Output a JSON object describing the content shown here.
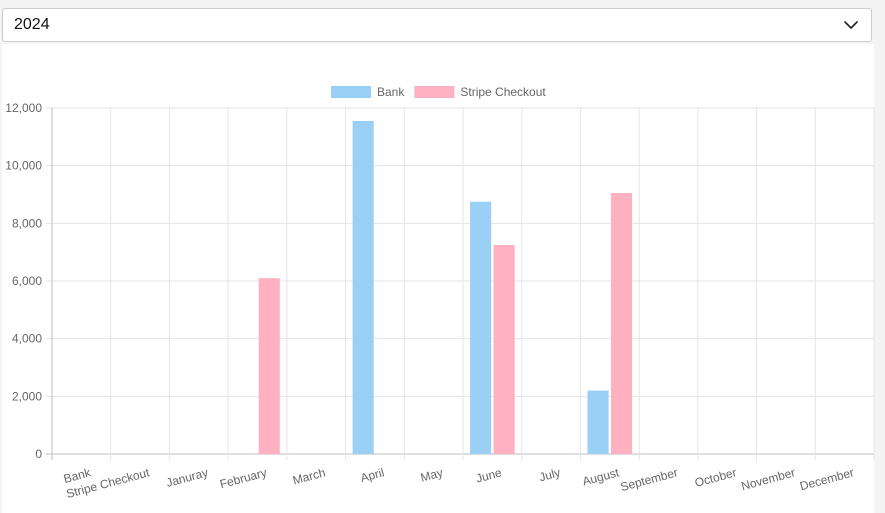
{
  "filter": {
    "selected_year": "2024",
    "chevron_icon": "chevron-down-icon"
  },
  "chart_data": {
    "type": "bar",
    "title": "",
    "xlabel": "",
    "ylabel": "",
    "categories": [
      "Bank",
      "Stripe Checkout",
      "Januray",
      "February",
      "March",
      "April",
      "May",
      "June",
      "July",
      "August",
      "September",
      "October",
      "November",
      "December"
    ],
    "series": [
      {
        "name": "Bank",
        "color": "#9ad0f5",
        "values": [
          0,
          0,
          0,
          0,
          0,
          11550,
          0,
          8750,
          0,
          2200,
          0,
          0,
          0,
          0
        ]
      },
      {
        "name": "Stripe Checkout",
        "color": "#ffb1c1",
        "values": [
          0,
          0,
          0,
          6100,
          0,
          0,
          0,
          7250,
          0,
          9050,
          0,
          0,
          0,
          0
        ]
      }
    ],
    "ylim": [
      0,
      12000
    ],
    "yticks": [
      "0",
      "2,000",
      "4,000",
      "6,000",
      "8,000",
      "10,000",
      "12,000"
    ],
    "grid": true,
    "legend": "top-center"
  }
}
